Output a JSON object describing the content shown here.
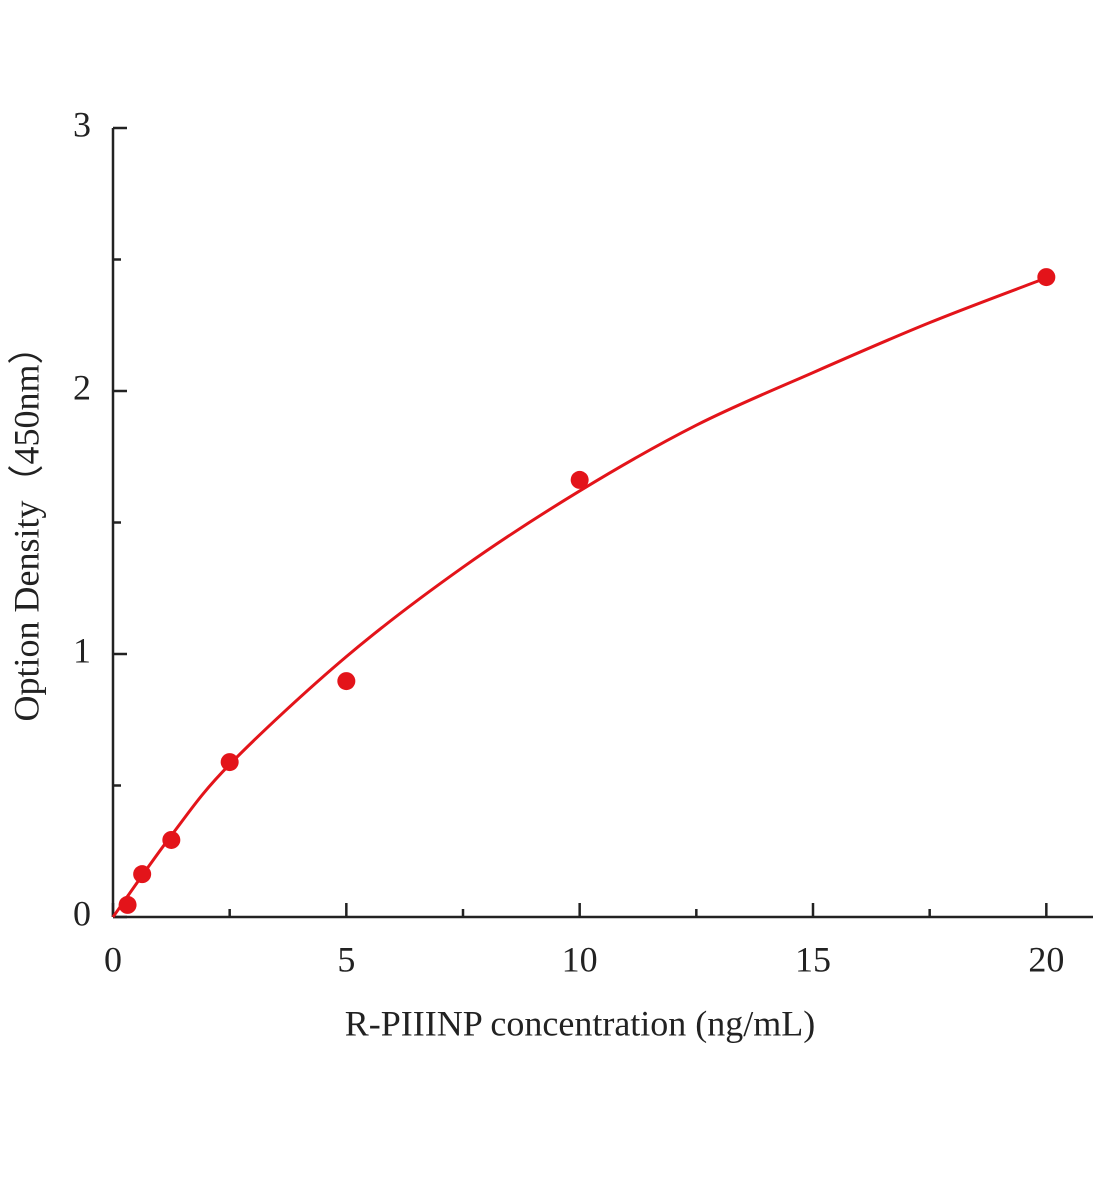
{
  "chart_data": {
    "type": "scatter",
    "x_label": "R-PIIINP concentration (ng/mL)",
    "y_label": "Option Density（450nm）",
    "xlim": [
      0,
      21
    ],
    "ylim": [
      0,
      3
    ],
    "xticks": [
      0,
      5,
      10,
      15,
      20
    ],
    "yticks": [
      0,
      1,
      2,
      3
    ],
    "xminorticks": [
      2.5,
      7.5,
      12.5,
      17.5
    ],
    "yminorticks": [
      0.5,
      1.5,
      2.5
    ],
    "color": "#e3141a",
    "x": [
      0.3125,
      0.625,
      1.25,
      2.5,
      5,
      10,
      20
    ],
    "values": [
      0.046,
      0.163,
      0.293,
      0.589,
      0.897,
      1.662,
      2.433
    ],
    "fit": {
      "x": [
        0,
        1.25,
        2.5,
        5,
        7.5,
        10,
        12.5,
        15,
        17.5,
        20
      ],
      "values": [
        0,
        0.31,
        0.58,
        0.99,
        1.33,
        1.62,
        1.87,
        2.07,
        2.26,
        2.43
      ]
    }
  }
}
